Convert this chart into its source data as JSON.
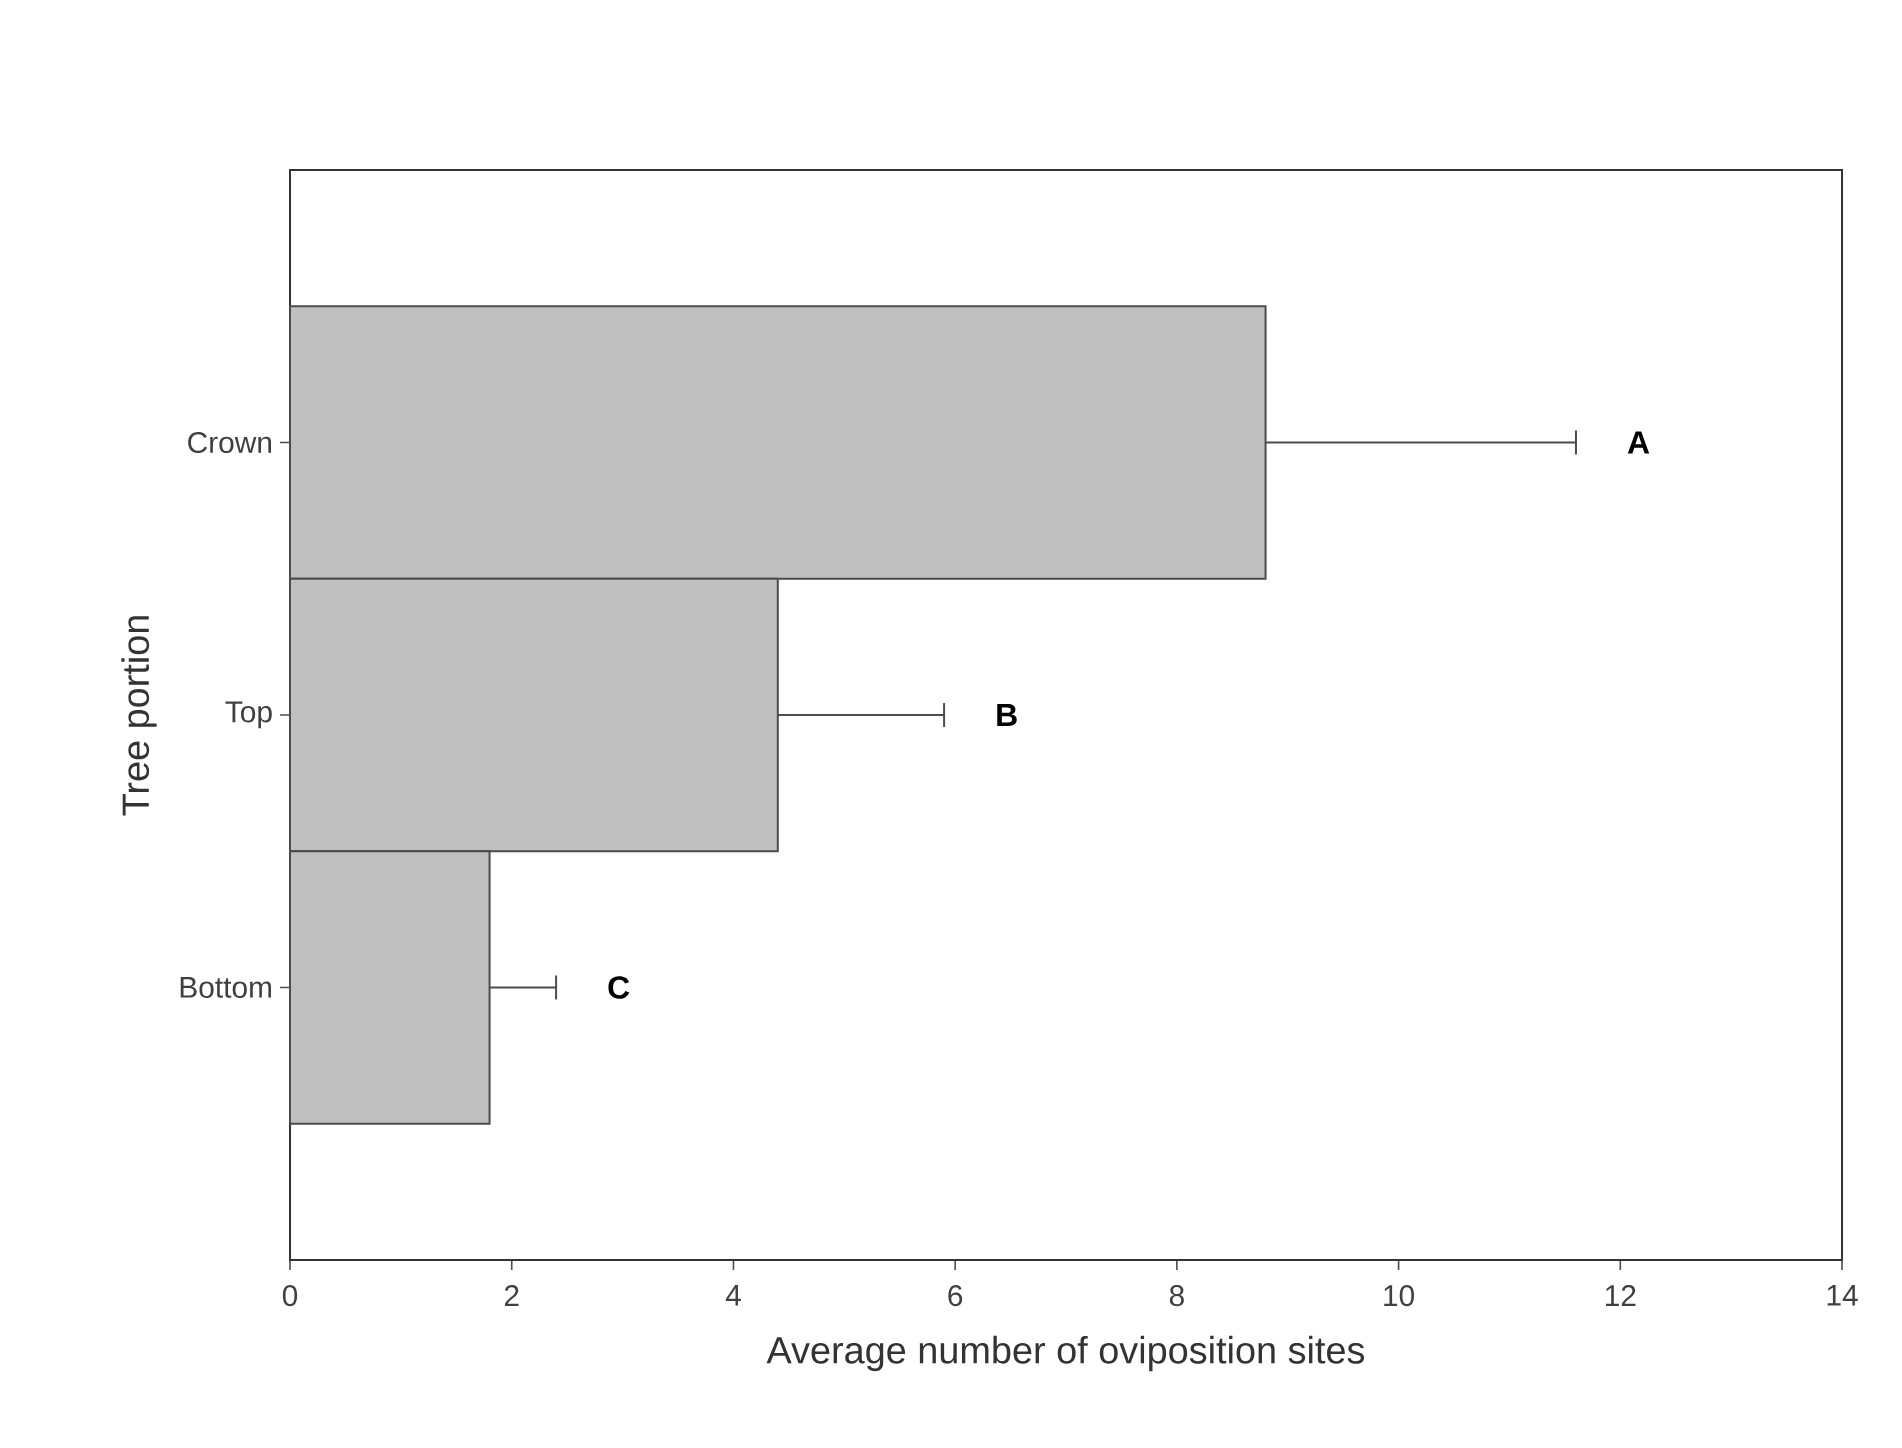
{
  "chart_data": {
    "type": "bar",
    "orientation": "horizontal",
    "xlabel": "Average number of oviposition sites",
    "ylabel": "Tree portion",
    "categories": [
      "Crown",
      "Top",
      "Bottom"
    ],
    "values": [
      8.8,
      4.4,
      1.8
    ],
    "errors": [
      [
        8.8,
        11.6
      ],
      [
        4.4,
        5.9
      ],
      [
        1.8,
        2.4
      ]
    ],
    "color": "#c0c0c0",
    "xlim": [
      0,
      14
    ],
    "xticks": [
      0,
      2,
      4,
      6,
      8,
      10,
      12,
      14
    ],
    "annotations": [
      "A",
      "B",
      "C"
    ],
    "grid": false
  }
}
